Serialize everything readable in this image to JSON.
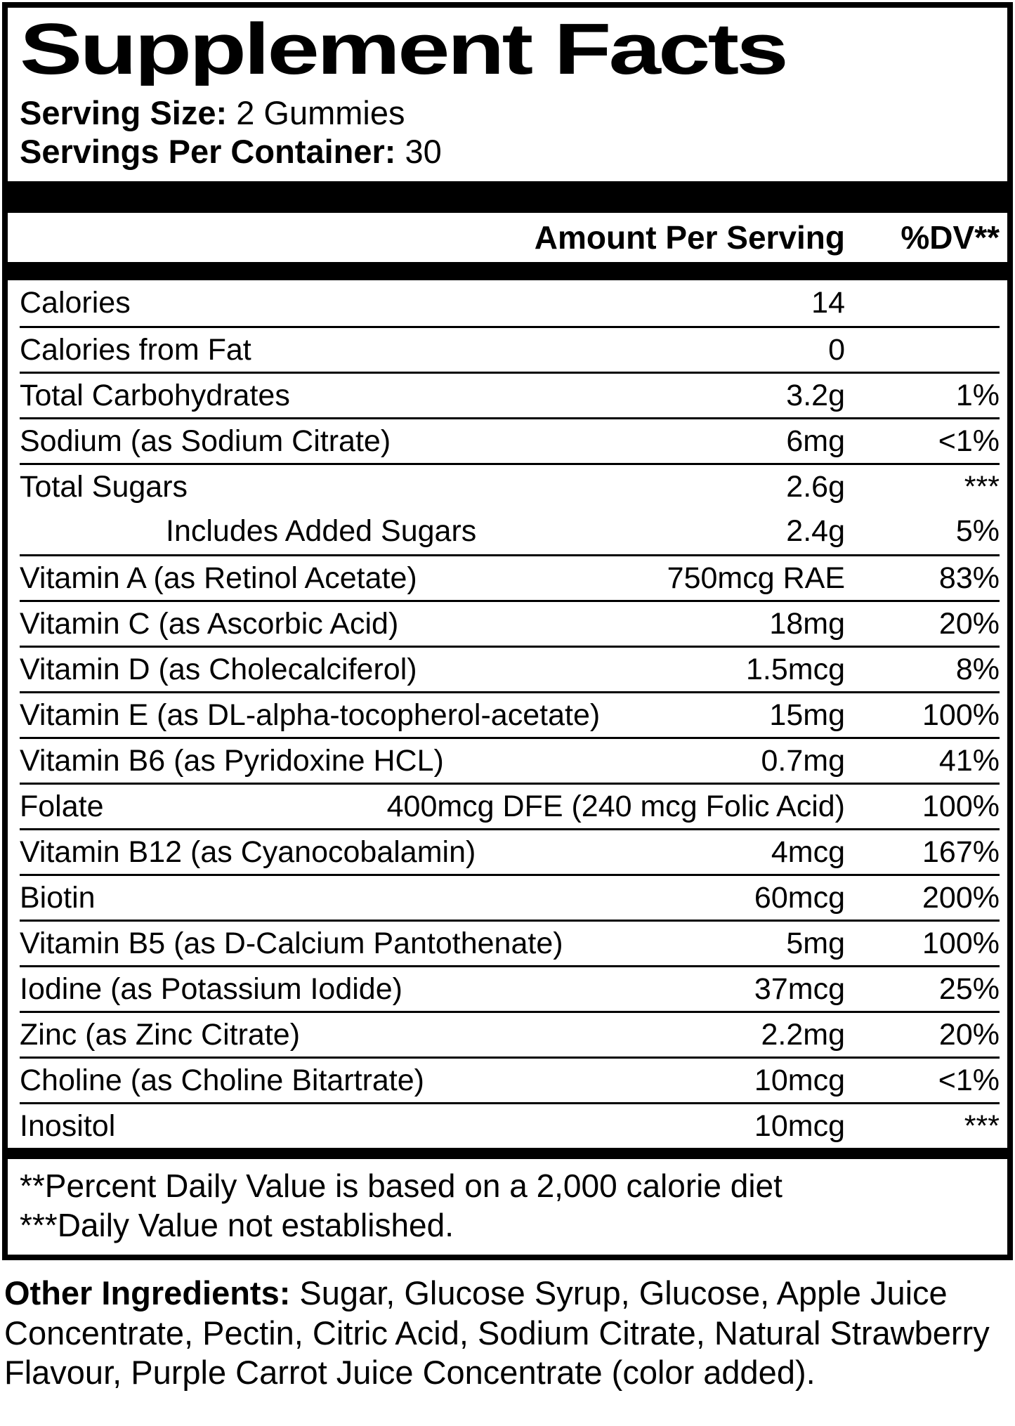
{
  "label": {
    "title": "Supplement Facts",
    "serving_size_label": "Serving Size:",
    "serving_size_value": " 2 Gummies",
    "servings_per_container_label": "Servings Per Container:",
    "servings_per_container_value": " 30",
    "header": {
      "amount": "Amount Per Serving",
      "dv": "%DV**"
    },
    "rows": [
      {
        "name": "Calories",
        "amount": "14",
        "dv": ""
      },
      {
        "name": "Calories from Fat",
        "amount": "0",
        "dv": ""
      },
      {
        "name": "Total Carbohydrates",
        "amount": "3.2g",
        "dv": "1%"
      },
      {
        "name": "Sodium (as Sodium Citrate)",
        "amount": "6mg",
        "dv": "<1%"
      },
      {
        "name": "Total Sugars",
        "amount": "2.6g",
        "dv": "***"
      },
      {
        "name": "Includes Added Sugars",
        "amount": "2.4g",
        "dv": "5%",
        "indent": true
      },
      {
        "name": "Vitamin A (as Retinol Acetate)",
        "amount": "750mcg RAE",
        "dv": "83%"
      },
      {
        "name": "Vitamin C (as Ascorbic Acid)",
        "amount": "18mg",
        "dv": "20%"
      },
      {
        "name": "Vitamin D (as Cholecalciferol)",
        "amount": "1.5mcg",
        "dv": "8%"
      },
      {
        "name": "Vitamin E (as DL-alpha-tocopherol-acetate)",
        "amount": "15mg",
        "dv": "100%"
      },
      {
        "name": "Vitamin B6 (as Pyridoxine HCL)",
        "amount": "0.7mg",
        "dv": "41%"
      },
      {
        "name": "Folate",
        "amount": "400mcg DFE (240 mcg Folic Acid)",
        "dv": "100%"
      },
      {
        "name": "Vitamin B12 (as Cyanocobalamin)",
        "amount": "4mcg",
        "dv": "167%"
      },
      {
        "name": "Biotin",
        "amount": "60mcg",
        "dv": "200%"
      },
      {
        "name": "Vitamin B5 (as D-Calcium Pantothenate)",
        "amount": "5mg",
        "dv": "100%"
      },
      {
        "name": "Iodine (as Potassium Iodide)",
        "amount": "37mcg",
        "dv": "25%"
      },
      {
        "name": "Zinc (as Zinc Citrate)",
        "amount": "2.2mg",
        "dv": "20%"
      },
      {
        "name": "Choline (as Choline Bitartrate)",
        "amount": "10mcg",
        "dv": "<1%"
      },
      {
        "name": "Inositol",
        "amount": "10mcg",
        "dv": "***"
      }
    ],
    "footnotes": [
      "**Percent Daily Value is based on a 2,000 calorie diet",
      "***Daily Value not established."
    ]
  },
  "other_ingredients": {
    "label": "Other Ingredients:",
    "text": " Sugar, Glucose Syrup, Glucose, Apple Juice Concentrate, Pectin, Citric Acid, Sodium Citrate, Natural Strawberry Flavour, Purple Carrot Juice Concentrate (color added)."
  },
  "colors": {
    "ink": "#000000",
    "paper": "#ffffff"
  }
}
